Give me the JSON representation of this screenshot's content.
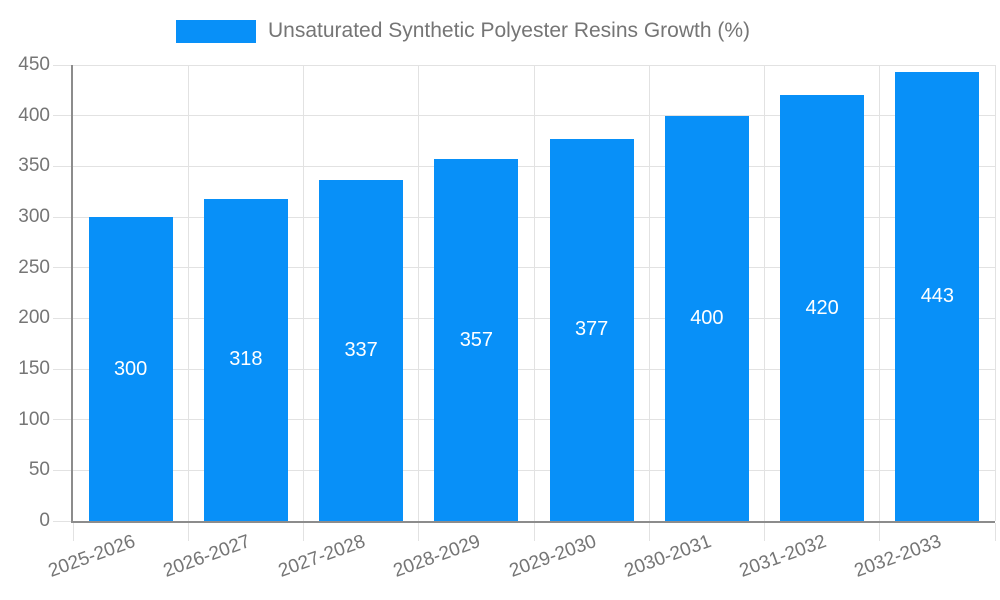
{
  "legend": {
    "label": "Unsaturated Synthetic Polyester Resins Growth (%)"
  },
  "chart_data": {
    "type": "bar",
    "title": "",
    "xlabel": "",
    "ylabel": "",
    "categories": [
      "2025-2026",
      "2026-2027",
      "2027-2028",
      "2028-2029",
      "2029-2030",
      "2030-2031",
      "2031-2032",
      "2032-2033"
    ],
    "series": [
      {
        "name": "Unsaturated Synthetic Polyester Resins Growth (%)",
        "values": [
          300,
          318,
          337,
          357,
          377,
          400,
          420,
          443
        ]
      }
    ],
    "value_labels_shown": true,
    "ylim": [
      0,
      450
    ],
    "yticks": [
      0,
      50,
      100,
      150,
      200,
      250,
      300,
      350,
      400,
      450
    ],
    "grid": true,
    "legend_position": "top",
    "colors": {
      "bar": "#0890f8",
      "grid": "#e2e2e2",
      "axis": "#8c8c8c",
      "axis_text": "#757575",
      "value_label": "#ffffff",
      "background": "#ffffff"
    }
  }
}
